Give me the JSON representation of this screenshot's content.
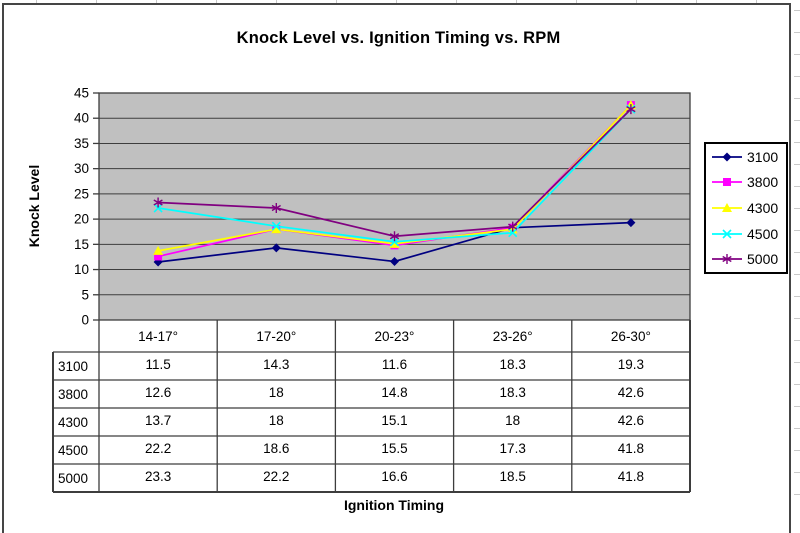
{
  "chart_data": {
    "type": "line",
    "title": "Knock Level vs. Ignition Timing vs. RPM",
    "xlabel": "Ignition Timing",
    "ylabel": "Knock Level",
    "categories": [
      "14-17°",
      "17-20°",
      "20-23°",
      "23-26°",
      "26-30°"
    ],
    "series": [
      {
        "name": "3100",
        "color": "#000080",
        "marker": "diamond",
        "values": [
          11.5,
          14.3,
          11.6,
          18.3,
          19.3
        ]
      },
      {
        "name": "3800",
        "color": "#FF00FF",
        "marker": "square",
        "values": [
          12.6,
          18,
          14.8,
          18.3,
          42.6
        ]
      },
      {
        "name": "4300",
        "color": "#FFFF00",
        "marker": "triangle",
        "values": [
          13.7,
          18,
          15.1,
          18,
          42.6
        ]
      },
      {
        "name": "4500",
        "color": "#00FFFF",
        "marker": "x",
        "values": [
          22.2,
          18.6,
          15.5,
          17.3,
          41.8
        ]
      },
      {
        "name": "5000",
        "color": "#800080",
        "marker": "star",
        "values": [
          23.3,
          22.2,
          16.6,
          18.5,
          41.8
        ]
      }
    ],
    "ylim": [
      0,
      45
    ],
    "ytick_step": 5,
    "yticks": [
      0,
      5,
      10,
      15,
      20,
      25,
      30,
      35,
      40,
      45
    ],
    "grid": true,
    "plot_bg": "#C0C0C0",
    "gridline_color": "#3d3d3d",
    "legend_position": "right",
    "data_table_shown": true
  }
}
